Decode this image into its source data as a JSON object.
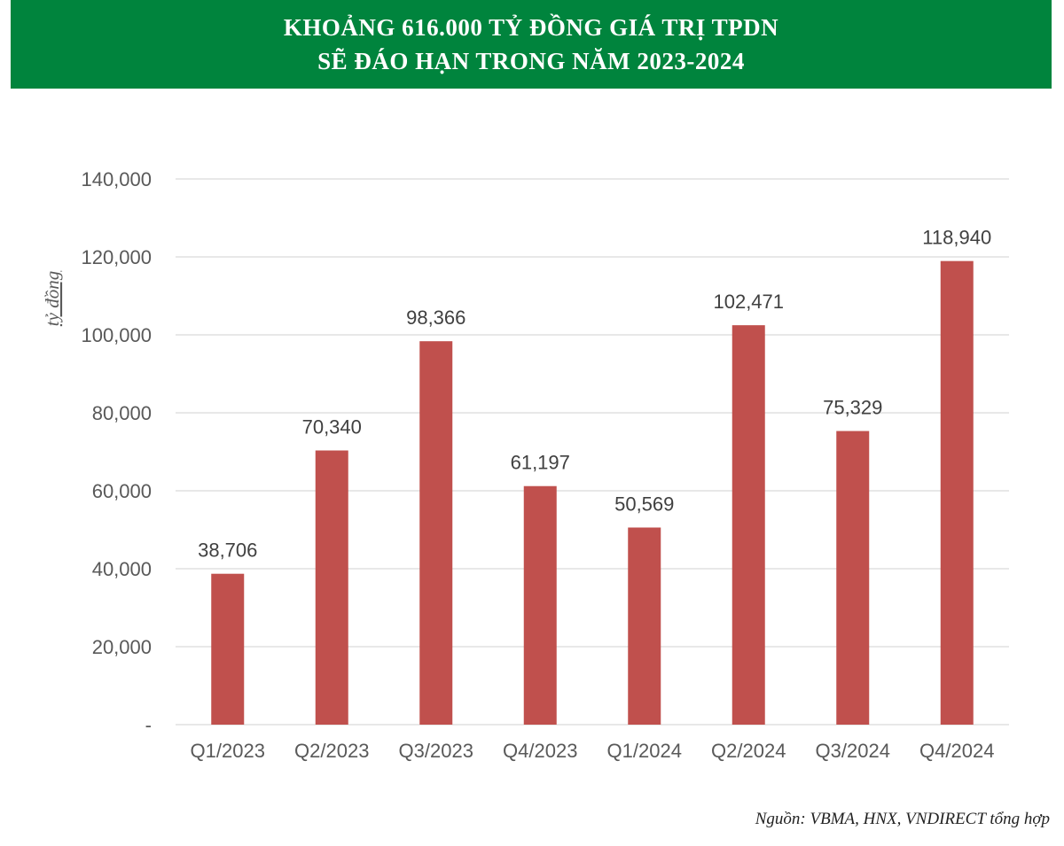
{
  "header": {
    "title_line1": "KHOẢNG 616.000 TỶ ĐỒNG GIÁ TRỊ TPDN",
    "title_line2": "SẼ ĐÁO HẠN TRONG NĂM 2023-2024"
  },
  "source": "Nguồn: VBMA, HNX, VNDIRECT tổng hợp",
  "colors": {
    "banner": "#00843d",
    "bar": "#c0504d",
    "grid": "#d9d9d9",
    "axis_text": "#595959"
  },
  "chart_data": {
    "type": "bar",
    "title": "KHOẢNG 616.000 TỶ ĐỒNG GIÁ TRỊ TPDN SẼ ĐÁO HẠN TRONG NĂM 2023-2024",
    "xlabel": "",
    "ylabel": "tỷ đồng",
    "categories": [
      "Q1/2023",
      "Q2/2023",
      "Q3/2023",
      "Q4/2023",
      "Q1/2024",
      "Q2/2024",
      "Q3/2024",
      "Q4/2024"
    ],
    "values": [
      38706,
      70340,
      98366,
      61197,
      50569,
      102471,
      75329,
      118940
    ],
    "value_labels": [
      "38,706",
      "70,340",
      "98,366",
      "61,197",
      "50,569",
      "102,471",
      "75,329",
      "118,940"
    ],
    "ylim": [
      0,
      140000
    ],
    "yticks": [
      0,
      20000,
      40000,
      60000,
      80000,
      100000,
      120000,
      140000
    ],
    "ytick_labels": [
      "-",
      "20,000",
      "40,000",
      "60,000",
      "80,000",
      "100,000",
      "120,000",
      "140,000"
    ],
    "grid": true,
    "legend": "none"
  }
}
